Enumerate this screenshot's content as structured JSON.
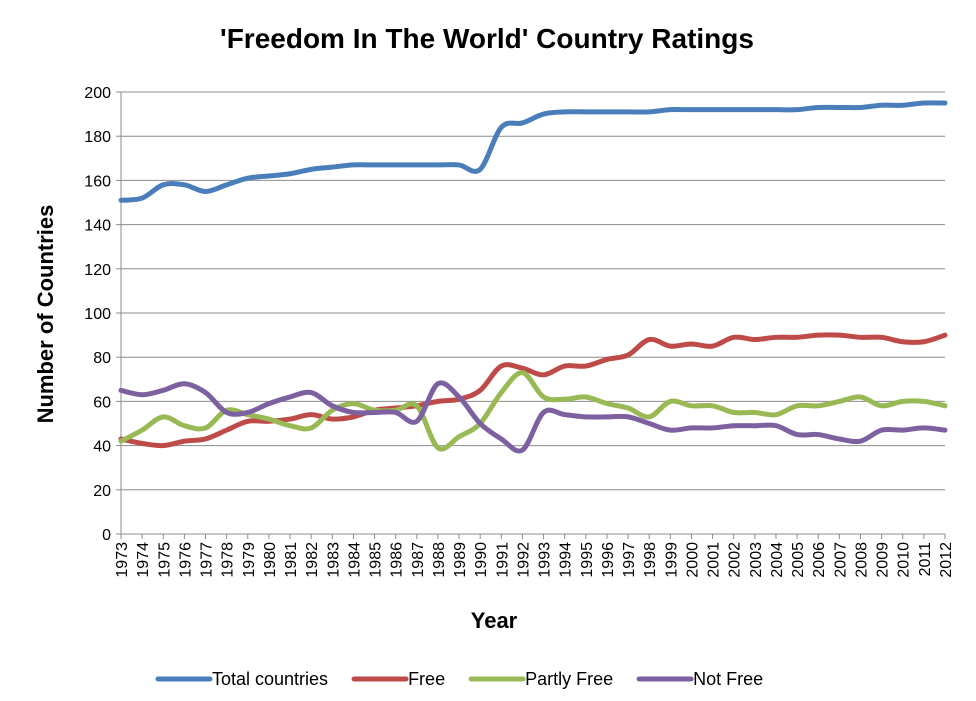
{
  "chart_data": {
    "type": "line",
    "title": "'Freedom In The World' Country Ratings",
    "xlabel": "Year",
    "ylabel": "Number of Countries",
    "ylim": [
      0,
      200
    ],
    "yticks": [
      0,
      20,
      40,
      60,
      80,
      100,
      120,
      140,
      160,
      180,
      200
    ],
    "grid": true,
    "legend_position": "bottom",
    "categories": [
      "1973",
      "1974",
      "1975",
      "1976",
      "1977",
      "1978",
      "1979",
      "1980",
      "1981",
      "1982",
      "1983",
      "1984",
      "1985",
      "1986",
      "1987",
      "1988",
      "1989",
      "1990",
      "1991",
      "1992",
      "1993",
      "1994",
      "1995",
      "1996",
      "1997",
      "1998",
      "1999",
      "2000",
      "2001",
      "2002",
      "2003",
      "2004",
      "2005",
      "2006",
      "2007",
      "2008",
      "2009",
      "2010",
      "2011",
      "2012"
    ],
    "series": [
      {
        "name": "Total countries",
        "color": "#4a7ebb",
        "values": [
          151,
          152,
          158,
          158,
          155,
          158,
          161,
          162,
          163,
          165,
          166,
          167,
          167,
          167,
          167,
          167,
          167,
          165,
          184,
          186,
          190,
          191,
          191,
          191,
          191,
          191,
          192,
          192,
          192,
          192,
          192,
          192,
          192,
          193,
          193,
          193,
          194,
          194,
          195,
          195
        ]
      },
      {
        "name": "Free",
        "color": "#be4b48",
        "values": [
          43,
          41,
          40,
          42,
          43,
          47,
          51,
          51,
          52,
          54,
          52,
          53,
          56,
          57,
          58,
          60,
          61,
          65,
          76,
          75,
          72,
          76,
          76,
          79,
          81,
          88,
          85,
          86,
          85,
          89,
          88,
          89,
          89,
          90,
          90,
          89,
          89,
          87,
          87,
          90
        ]
      },
      {
        "name": "Partly Free",
        "color": "#98b954",
        "values": [
          42,
          47,
          53,
          49,
          48,
          56,
          54,
          52,
          49,
          48,
          56,
          59,
          56,
          56,
          58,
          39,
          44,
          50,
          64,
          73,
          62,
          61,
          62,
          59,
          57,
          53,
          60,
          58,
          58,
          55,
          55,
          54,
          58,
          58,
          60,
          62,
          58,
          60,
          60,
          58
        ]
      },
      {
        "name": "Not Free",
        "color": "#7d60a0",
        "values": [
          65,
          63,
          65,
          68,
          64,
          55,
          55,
          59,
          62,
          64,
          58,
          55,
          55,
          55,
          51,
          68,
          62,
          50,
          43,
          38,
          55,
          54,
          53,
          53,
          53,
          50,
          47,
          48,
          48,
          49,
          49,
          49,
          45,
          45,
          43,
          42,
          47,
          47,
          48,
          47
        ]
      }
    ]
  }
}
